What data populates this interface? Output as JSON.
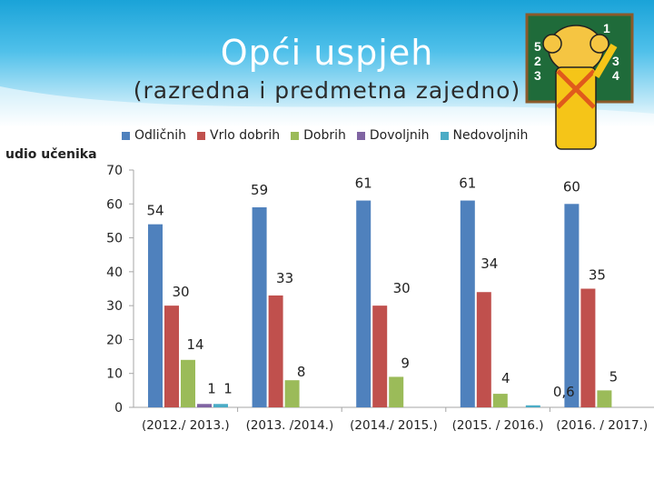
{
  "header": {
    "title": "Opći uspjeh",
    "subtitle": "(razredna i predmetna zajedno)"
  },
  "clipart_icon": "student-chalkboard-icon",
  "chart_data": {
    "type": "bar",
    "ylabel": "udio učenika",
    "ylim": [
      0,
      70
    ],
    "yticks": [
      0,
      10,
      20,
      30,
      40,
      50,
      60,
      70
    ],
    "grid": false,
    "legend_placement": "top",
    "categories": [
      "(2012./ 2013.)",
      "(2013. /2014.)",
      "(2014./ 2015.)",
      "(2015. / 2016.)",
      "(2016. / 2017.)"
    ],
    "series": [
      {
        "name": "Odličnih",
        "color": "#4f81bd",
        "values": [
          54,
          59,
          61,
          61,
          60
        ],
        "labels": [
          "54",
          "59",
          "61",
          "61",
          "60"
        ]
      },
      {
        "name": "Vrlo dobrih",
        "color": "#c0504d",
        "values": [
          30,
          33,
          30,
          34,
          35
        ],
        "labels": [
          "30",
          "33",
          "30",
          "34",
          "35"
        ]
      },
      {
        "name": "Dobrih",
        "color": "#9bbb59",
        "values": [
          14,
          8,
          9,
          4,
          5
        ],
        "labels": [
          "14",
          "8",
          "9",
          "4",
          "5"
        ]
      },
      {
        "name": "Dovoljnih",
        "color": "#8064a2",
        "values": [
          1,
          0,
          0,
          0,
          0
        ],
        "labels": [
          "1",
          "",
          "",
          "",
          ""
        ]
      },
      {
        "name": "Nedovoljnih",
        "color": "#4bacc6",
        "values": [
          1,
          0,
          0,
          0.6,
          0
        ],
        "labels": [
          "1",
          "",
          "",
          "0,6",
          ""
        ]
      }
    ]
  }
}
